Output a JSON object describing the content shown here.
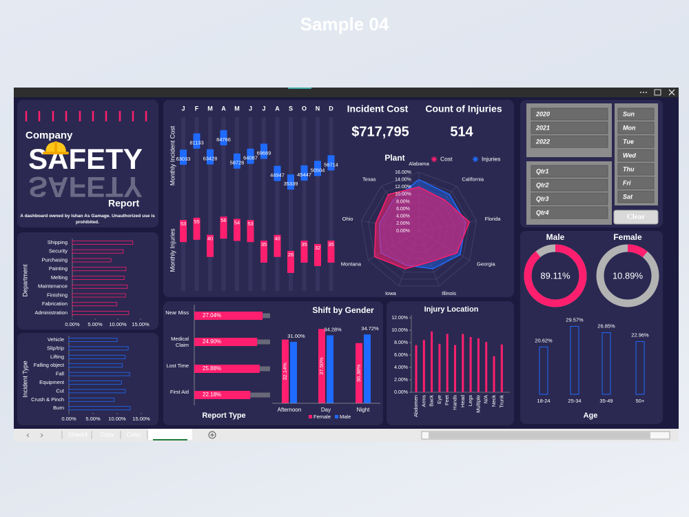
{
  "page_title": "Sample 04",
  "branding": {
    "company": "Company",
    "safety": "SAFETY",
    "report": "Report",
    "caption": "A dashboard owned by Ishan As Gamage. Unauthorized use is prohibited."
  },
  "kpis": [
    {
      "label": "Incident Cost",
      "value": "$717,795"
    },
    {
      "label": "Count of Injuries",
      "value": 514
    }
  ],
  "slicers": {
    "years": [
      "2020",
      "2021",
      "2022"
    ],
    "quarters": [
      "Qtr1",
      "Qtr2",
      "Qtr3",
      "Qtr4"
    ],
    "days": [
      "Sun",
      "Mon",
      "Tue",
      "Wed",
      "Thu",
      "Fri",
      "Sat"
    ],
    "clear": "Clear"
  },
  "sheet_tabs": [
    "Sheet4",
    "Data",
    "Color",
    "Dashboard"
  ],
  "chart_data": [
    {
      "type": "marker",
      "y_label": "Monthly Incident Cost",
      "categories": [
        "J",
        "F",
        "M",
        "A",
        "M",
        "J",
        "J",
        "A",
        "S",
        "O",
        "N",
        "D"
      ],
      "values": [
        63033,
        81133,
        63428,
        84766,
        58728,
        64087,
        69669,
        44947,
        35339,
        45447,
        50504,
        56714
      ],
      "color": "#1f6bff",
      "ylim": [
        0,
        100000
      ]
    },
    {
      "type": "marker",
      "y_label": "Monthly Injuries",
      "values": [
        53,
        55,
        40,
        56,
        54,
        53,
        35,
        40,
        26,
        35,
        32,
        35
      ],
      "color": "#ff1f6e",
      "ylim": [
        0,
        70
      ]
    },
    {
      "type": "radar",
      "title": "Plant",
      "categories": [
        "Alabama",
        "California",
        "Florida",
        "Georgia",
        "Illinois",
        "Iowa",
        "Montana",
        "Ohio",
        "Texas"
      ],
      "series": [
        {
          "name": "Cost",
          "color": "#ff1f6e",
          "values": [
            12,
            11,
            14,
            12,
            9,
            11,
            14,
            12,
            13
          ]
        },
        {
          "name": "Injuries",
          "color": "#1f6bff",
          "values": [
            14,
            13,
            13,
            13,
            11,
            10,
            12,
            11,
            11
          ]
        }
      ],
      "ylim": [
        0,
        16
      ],
      "yticks": [
        {
          "value": 0,
          "label": "0.00%"
        },
        {
          "value": 2,
          "label": "2.00%"
        },
        {
          "value": 4,
          "label": "4.00%"
        },
        {
          "value": 6,
          "label": "6.00%"
        },
        {
          "value": 8,
          "label": "8.00%"
        },
        {
          "value": 10,
          "label": "10.00%"
        },
        {
          "value": 12,
          "label": "12.00%"
        },
        {
          "value": 14,
          "label": "14.00%"
        },
        {
          "value": 16,
          "label": "16.00%"
        }
      ]
    },
    {
      "type": "hbar",
      "y_label": "Department",
      "categories": [
        "Shipping",
        "Security",
        "Purchasing",
        "Painting",
        "Melting",
        "Maintenance",
        "Finishing",
        "Fabrication",
        "Administration"
      ],
      "values": [
        13.3,
        11.2,
        8.5,
        11.8,
        11.4,
        12.1,
        11.7,
        9.8,
        12.4
      ],
      "color": "#ff1f6e",
      "xlim": [
        0,
        16
      ],
      "xticks": [
        {
          "value": 0,
          "label": "0.00%"
        },
        {
          "value": 5,
          "label": "5.00%"
        },
        {
          "value": 10,
          "label": "10.00%"
        },
        {
          "value": 15,
          "label": "15.00%"
        }
      ]
    },
    {
      "type": "hbar",
      "y_label": "Incident Type",
      "categories": [
        "Vehicle",
        "Slip/trip",
        "Lifting",
        "Falling object",
        "Fall",
        "Equipment",
        "Cut",
        "Crush & Pinch",
        "Burn"
      ],
      "values": [
        10,
        12.3,
        11.7,
        11.1,
        12.6,
        10.9,
        11.7,
        9.4,
        12.7
      ],
      "color": "#1f6bff",
      "xlim": [
        0,
        16
      ],
      "xticks": [
        {
          "value": 0,
          "label": "0.00%"
        },
        {
          "value": 5,
          "label": "5.00%"
        },
        {
          "value": 10,
          "label": "10.00%"
        },
        {
          "value": 15,
          "label": "15.00%"
        }
      ]
    },
    {
      "type": "progress",
      "title": "Report Type",
      "categories": [
        "Near Miss",
        "Medical Claim",
        "Lost Time",
        "First Aid"
      ],
      "values": [
        27.04,
        24.9,
        25.88,
        22.18
      ],
      "value_labels": [
        "27.04%",
        "24.90%",
        "25.88%",
        "22.18%"
      ],
      "color": "#ff1f6e",
      "xlim": [
        0,
        30
      ]
    },
    {
      "type": "groupbar",
      "title": "Shift by Gender",
      "categories": [
        "Afternoon",
        "Day",
        "Night"
      ],
      "series": [
        {
          "name": "Female",
          "color": "#ff1f6e",
          "values": [
            32.14,
            37.5,
            30.36
          ],
          "value_labels": [
            "32.14%",
            "37.50%",
            "30.36%"
          ]
        },
        {
          "name": "Male",
          "color": "#1f6bff",
          "values": [
            31,
            34.28,
            34.72
          ],
          "value_labels": [
            "31.00%",
            "34.28%",
            "34.72%"
          ]
        }
      ],
      "ylim": [
        0,
        40
      ]
    },
    {
      "type": "bar",
      "title": "Injury Location",
      "categories": [
        "Abdomen",
        "Arms",
        "Back",
        "Eye",
        "Feet",
        "Hands",
        "Head",
        "Legs",
        "Multiple",
        "N/A",
        "Neck",
        "Trunk"
      ],
      "values": [
        7.6,
        8.4,
        9.8,
        7.8,
        9.4,
        7.6,
        9.4,
        8.9,
        8.7,
        8.1,
        5.8,
        7.7
      ],
      "color": "#ff1f6e",
      "ylim": [
        0,
        12
      ],
      "yticks": [
        {
          "value": 0,
          "label": "0.00%"
        },
        {
          "value": 2,
          "label": "2.00%"
        },
        {
          "value": 4,
          "label": "4.00%"
        },
        {
          "value": 6,
          "label": "6.00%"
        },
        {
          "value": 8,
          "label": "8.00%"
        },
        {
          "value": 10,
          "label": "10.00%"
        },
        {
          "value": 12,
          "label": "12.00%"
        }
      ]
    },
    {
      "type": "donut",
      "title": "Male",
      "values": [
        89.11
      ],
      "value_labels": [
        "89.11%"
      ],
      "color": "#ff1f6e"
    },
    {
      "type": "donut",
      "title": "Female",
      "values": [
        10.89
      ],
      "value_labels": [
        "10.89%"
      ],
      "color": "#ff1f6e"
    },
    {
      "type": "outlinebar",
      "title": "Age",
      "categories": [
        "18-24",
        "25-34",
        "35-49",
        "50+"
      ],
      "values": [
        20.62,
        29.57,
        26.85,
        22.96
      ],
      "value_labels": [
        "20.62%",
        "29.57%",
        "26.85%",
        "22.96%"
      ],
      "color": "#1f6bff",
      "ylim": [
        0,
        30
      ]
    }
  ]
}
